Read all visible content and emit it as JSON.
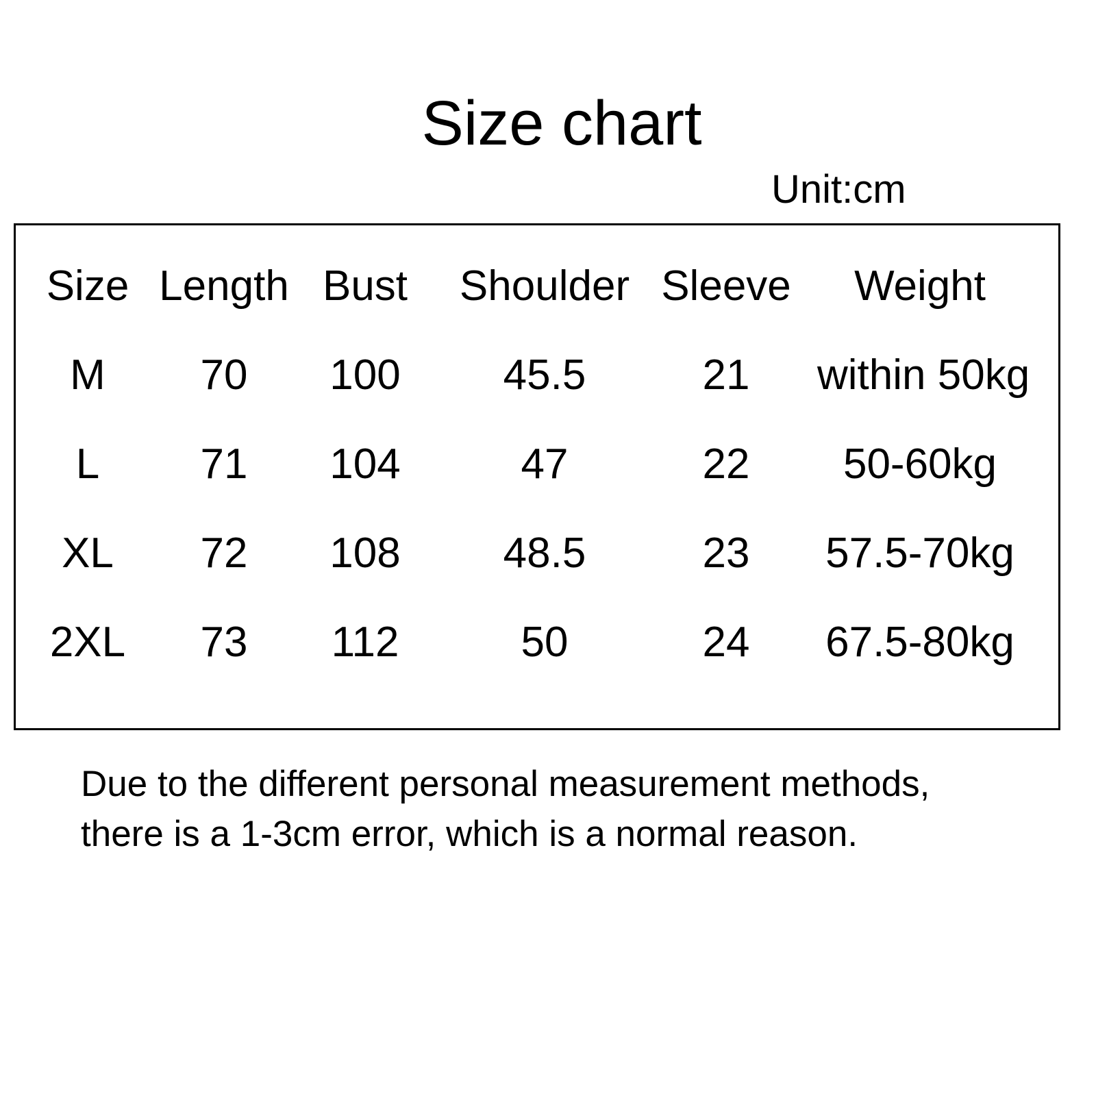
{
  "title": "Size chart",
  "unit": "Unit:cm",
  "table": {
    "headers": [
      "Size",
      "Length",
      "Bust",
      "Shoulder",
      "Sleeve",
      "Weight"
    ],
    "rows": [
      [
        "M",
        "70",
        "100",
        "45.5",
        "21",
        "within 50kg"
      ],
      [
        "L",
        "71",
        "104",
        "47",
        "22",
        "50-60kg"
      ],
      [
        "XL",
        "72",
        "108",
        "48.5",
        "23",
        "57.5-70kg"
      ],
      [
        "2XL",
        "73",
        "112",
        "50",
        "24",
        "67.5-80kg"
      ]
    ]
  },
  "note": {
    "line1": "Due to the different personal measurement methods,",
    "line2": "there is a 1-3cm error, which is a normal reason."
  },
  "colors": {
    "text": "#000000",
    "border": "#000000",
    "background": "#ffffff"
  }
}
